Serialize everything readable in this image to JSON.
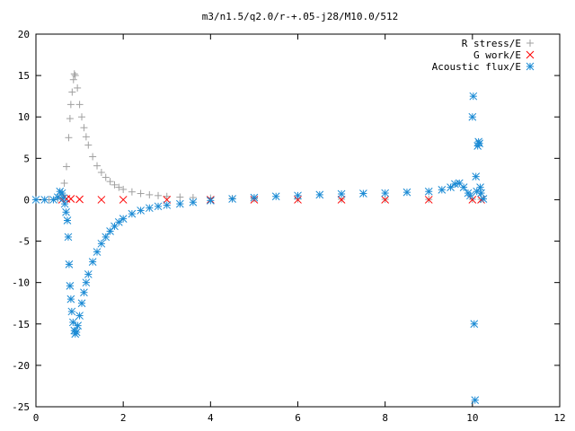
{
  "chart_data": {
    "type": "scatter",
    "title": "m3/n1.5/q2.0/r-+.05-j28/M10.0/512",
    "xlabel": "",
    "ylabel": "",
    "xlim": [
      0,
      12
    ],
    "ylim": [
      -25,
      20
    ],
    "x_ticks": [
      "0",
      "2",
      "4",
      "6",
      "8",
      "10",
      "12"
    ],
    "y_ticks": [
      "20",
      "15",
      "10",
      "5",
      "0",
      "-5",
      "-10",
      "-15",
      "-20",
      "-25"
    ],
    "grid": false,
    "legend_position": "top-right",
    "series": [
      {
        "name": "R stress/E",
        "marker": "plus",
        "color": "#a0a0a0",
        "points": [
          [
            0.0,
            0.0
          ],
          [
            0.3,
            0.0
          ],
          [
            0.5,
            0.1
          ],
          [
            0.6,
            0.6
          ],
          [
            0.65,
            2.0
          ],
          [
            0.7,
            4.0
          ],
          [
            0.75,
            7.5
          ],
          [
            0.78,
            9.8
          ],
          [
            0.8,
            11.5
          ],
          [
            0.83,
            13.0
          ],
          [
            0.86,
            14.5
          ],
          [
            0.88,
            15.2
          ],
          [
            0.9,
            15.0
          ],
          [
            0.95,
            13.5
          ],
          [
            1.0,
            11.5
          ],
          [
            1.05,
            10.0
          ],
          [
            1.1,
            8.7
          ],
          [
            1.15,
            7.6
          ],
          [
            1.2,
            6.6
          ],
          [
            1.3,
            5.2
          ],
          [
            1.4,
            4.1
          ],
          [
            1.5,
            3.3
          ],
          [
            1.6,
            2.7
          ],
          [
            1.7,
            2.2
          ],
          [
            1.8,
            1.8
          ],
          [
            1.9,
            1.5
          ],
          [
            2.0,
            1.25
          ],
          [
            2.2,
            0.95
          ],
          [
            2.4,
            0.75
          ],
          [
            2.6,
            0.6
          ],
          [
            2.8,
            0.5
          ],
          [
            3.0,
            0.4
          ],
          [
            3.3,
            0.32
          ],
          [
            3.6,
            0.26
          ],
          [
            4.0,
            0.2
          ],
          [
            4.5,
            0.15
          ],
          [
            5.0,
            0.12
          ],
          [
            6.0,
            0.08
          ],
          [
            7.0,
            0.06
          ],
          [
            8.0,
            0.05
          ],
          [
            9.0,
            0.04
          ],
          [
            10.0,
            0.05
          ],
          [
            10.2,
            0.05
          ]
        ]
      },
      {
        "name": "G work/E",
        "marker": "cross",
        "color": "#ff0000",
        "points": [
          [
            0.6,
            0.0
          ],
          [
            0.7,
            0.1
          ],
          [
            0.8,
            0.1
          ],
          [
            1.0,
            0.05
          ],
          [
            1.5,
            0.0
          ],
          [
            2.0,
            0.0
          ],
          [
            3.0,
            0.0
          ],
          [
            4.0,
            0.0
          ],
          [
            5.0,
            0.0
          ],
          [
            6.0,
            0.0
          ],
          [
            7.0,
            0.0
          ],
          [
            8.0,
            0.0
          ],
          [
            9.0,
            0.0
          ],
          [
            10.0,
            0.0
          ],
          [
            10.2,
            0.0
          ]
        ]
      },
      {
        "name": "Acoustic flux/E",
        "marker": "star",
        "color": "#1a8ad4",
        "points": [
          [
            0.0,
            0.0
          ],
          [
            0.2,
            0.0
          ],
          [
            0.4,
            0.0
          ],
          [
            0.5,
            0.3
          ],
          [
            0.55,
            1.0
          ],
          [
            0.6,
            0.8
          ],
          [
            0.63,
            0.2
          ],
          [
            0.66,
            -0.5
          ],
          [
            0.69,
            -1.5
          ],
          [
            0.72,
            -2.5
          ],
          [
            0.74,
            -4.5
          ],
          [
            0.76,
            -7.8
          ],
          [
            0.78,
            -10.4
          ],
          [
            0.8,
            -12.0
          ],
          [
            0.82,
            -13.5
          ],
          [
            0.85,
            -14.8
          ],
          [
            0.88,
            -15.8
          ],
          [
            0.9,
            -16.2
          ],
          [
            0.93,
            -16.0
          ],
          [
            0.96,
            -15.2
          ],
          [
            1.0,
            -14.0
          ],
          [
            1.05,
            -12.5
          ],
          [
            1.1,
            -11.2
          ],
          [
            1.15,
            -10.0
          ],
          [
            1.2,
            -9.0
          ],
          [
            1.3,
            -7.5
          ],
          [
            1.4,
            -6.3
          ],
          [
            1.5,
            -5.3
          ],
          [
            1.6,
            -4.5
          ],
          [
            1.7,
            -3.8
          ],
          [
            1.8,
            -3.2
          ],
          [
            1.9,
            -2.7
          ],
          [
            2.0,
            -2.3
          ],
          [
            2.2,
            -1.7
          ],
          [
            2.4,
            -1.3
          ],
          [
            2.6,
            -1.0
          ],
          [
            2.8,
            -0.8
          ],
          [
            3.0,
            -0.65
          ],
          [
            3.3,
            -0.5
          ],
          [
            3.6,
            -0.3
          ],
          [
            4.0,
            -0.1
          ],
          [
            4.5,
            0.1
          ],
          [
            5.0,
            0.25
          ],
          [
            5.5,
            0.4
          ],
          [
            6.0,
            0.5
          ],
          [
            6.5,
            0.6
          ],
          [
            7.0,
            0.7
          ],
          [
            7.5,
            0.75
          ],
          [
            8.0,
            0.8
          ],
          [
            8.5,
            0.9
          ],
          [
            9.0,
            1.0
          ],
          [
            9.3,
            1.2
          ],
          [
            9.5,
            1.5
          ],
          [
            9.6,
            1.9
          ],
          [
            9.7,
            2.0
          ],
          [
            9.8,
            1.5
          ],
          [
            9.9,
            0.8
          ],
          [
            9.95,
            0.5
          ],
          [
            10.0,
            10.0
          ],
          [
            10.02,
            12.5
          ],
          [
            10.04,
            -15.0
          ],
          [
            10.06,
            -24.2
          ],
          [
            10.08,
            2.8
          ],
          [
            10.1,
            1.0
          ],
          [
            10.12,
            6.5
          ],
          [
            10.14,
            7.0
          ],
          [
            10.16,
            6.8
          ],
          [
            10.18,
            1.5
          ],
          [
            10.2,
            0.8
          ],
          [
            10.25,
            0.1
          ]
        ]
      }
    ]
  }
}
